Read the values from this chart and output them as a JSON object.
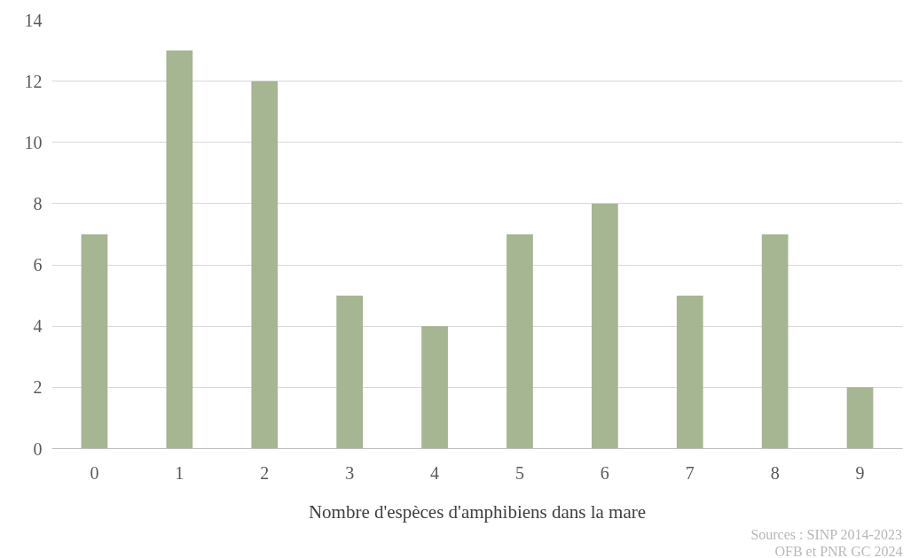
{
  "chart_data": {
    "type": "bar",
    "xlabel": "Nombre d'espèces d'amphibiens dans la mare",
    "categories": [
      "0",
      "1",
      "2",
      "3",
      "4",
      "5",
      "6",
      "7",
      "8",
      "9"
    ],
    "values": [
      7,
      13,
      12,
      5,
      4,
      7,
      8,
      5,
      7,
      2
    ],
    "color": "#a6b592",
    "ylim": [
      0,
      14
    ],
    "yticks": [
      0,
      2,
      4,
      6,
      8,
      10,
      12,
      14
    ],
    "grid": "y",
    "annotations": [
      "Sources : SINP 2014-2023",
      "OFB et PNR GC 2024"
    ]
  }
}
